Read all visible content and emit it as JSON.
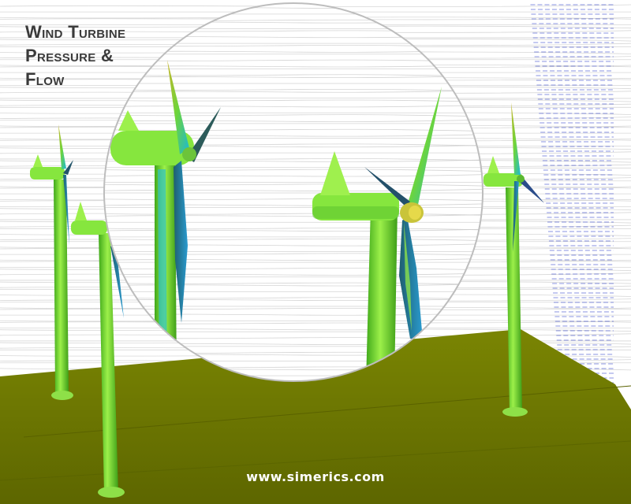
{
  "title": {
    "line1": "Wind Turbine",
    "line2": "Pressure &",
    "line3": "Flow"
  },
  "watermark": "www.simerics.com",
  "colors": {
    "background": "#ffffff",
    "ground": "#6f7a00",
    "turbine": "#78e03a",
    "blade_shade": "#1fbfd0",
    "flow_lines": "#c9c9c9",
    "inlet_vectors": "#2a3cc8"
  }
}
